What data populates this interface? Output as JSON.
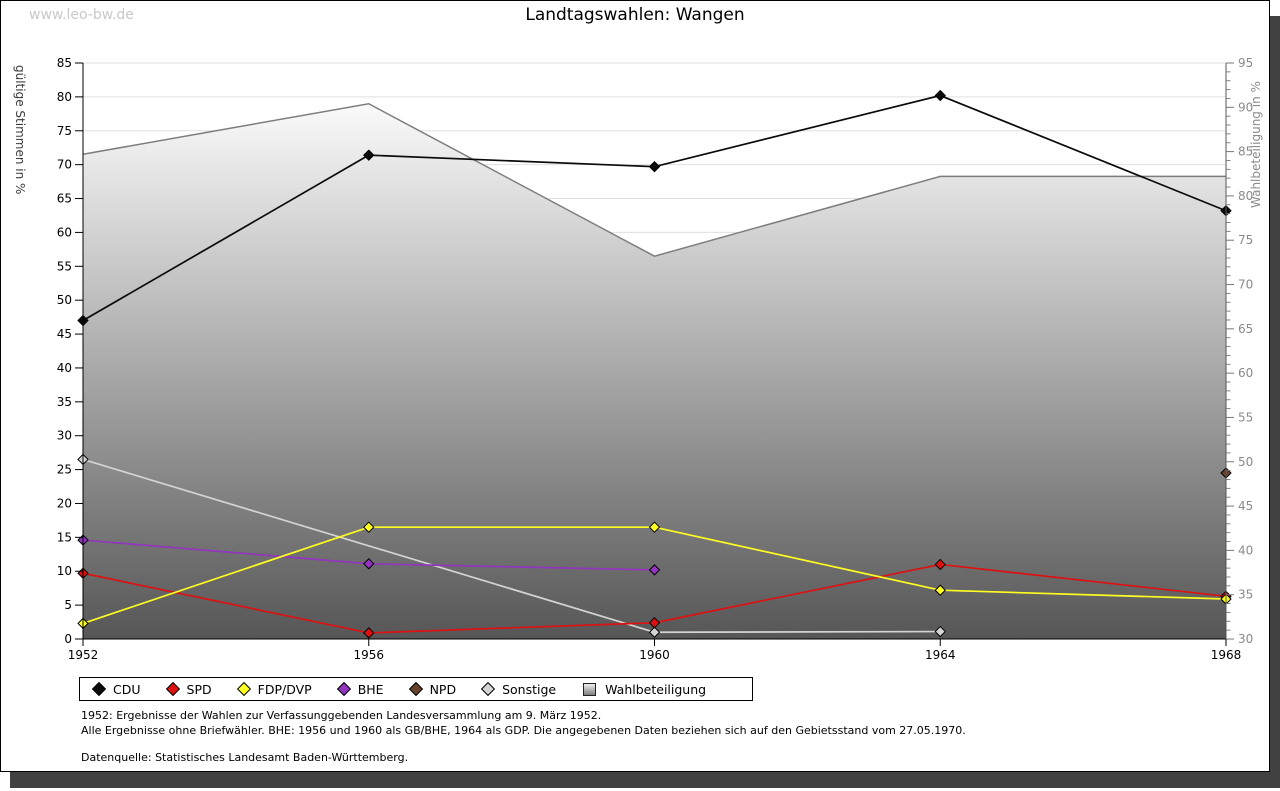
{
  "watermark": "www.leo-bw.de",
  "title": "Landtagswahlen: Wangen",
  "footnotes": {
    "line1": "1952: Ergebnisse der Wahlen zur Verfassunggebenden Landesversammlung am 9. März 1952.",
    "line2": "Alle Ergebnisse ohne Briefwähler. BHE: 1956 und 1960 als GB/BHE, 1964 als GDP. Die angegebenen Daten beziehen sich auf den Gebietsstand vom 27.05.1970.",
    "source": "Datenquelle: Statistisches Landesamt Baden-Württemberg."
  },
  "chart_data": {
    "type": "line",
    "title": "Landtagswahlen: Wangen",
    "x_ticks": [
      1952,
      1956,
      1960,
      1964,
      1968
    ],
    "axes": {
      "x": {
        "min": 1952,
        "max": 1968
      },
      "left": {
        "label": "gültige Stimmen in %",
        "min": 0,
        "max": 85,
        "tick_step": 5
      },
      "right": {
        "label": "Wahlbeteiligung in %",
        "min": 30,
        "max": 95,
        "tick_step": 5,
        "minor_step": 1
      }
    },
    "grid": "horizontal",
    "legend_position": "bottom",
    "series": [
      {
        "name": "CDU",
        "color": "#0a0a0a",
        "axis": "left",
        "style": "line",
        "points": [
          [
            1952,
            47.0
          ],
          [
            1956,
            71.4
          ],
          [
            1960,
            69.7
          ],
          [
            1964,
            80.2
          ],
          [
            1968,
            63.2
          ]
        ]
      },
      {
        "name": "SPD",
        "color": "#dd1111",
        "axis": "left",
        "style": "line",
        "points": [
          [
            1952,
            9.7
          ],
          [
            1956,
            0.9
          ],
          [
            1960,
            2.4
          ],
          [
            1964,
            11.0
          ],
          [
            1968,
            6.3
          ]
        ]
      },
      {
        "name": "FDP/DVP",
        "color": "#ffff22",
        "axis": "left",
        "style": "line",
        "points": [
          [
            1952,
            2.3
          ],
          [
            1956,
            16.5
          ],
          [
            1960,
            16.5
          ],
          [
            1964,
            7.2
          ],
          [
            1968,
            5.9
          ]
        ]
      },
      {
        "name": "BHE",
        "color": "#9136bd",
        "axis": "left",
        "style": "line",
        "points": [
          [
            1952,
            14.6
          ],
          [
            1956,
            11.1
          ],
          [
            1960,
            10.2
          ]
        ]
      },
      {
        "name": "NPD",
        "color": "#69432b",
        "axis": "left",
        "style": "point",
        "points": [
          [
            1968,
            24.5
          ]
        ]
      },
      {
        "name": "Sonstige",
        "color": "#d4d4d4",
        "axis": "left",
        "style": "line",
        "points": [
          [
            1952,
            26.5
          ],
          [
            1960,
            1.0
          ],
          [
            1964,
            1.1
          ]
        ]
      },
      {
        "name": "Wahlbeteiligung",
        "color": "#8d8d8d",
        "axis": "right",
        "style": "area",
        "points": [
          [
            1952,
            84.7
          ],
          [
            1956,
            90.4
          ],
          [
            1960,
            73.2
          ],
          [
            1964,
            82.2
          ],
          [
            1968,
            82.2
          ]
        ]
      }
    ],
    "style": {
      "grid_color": "#e0e0e0",
      "area_gradient_top": "#fbfbfb",
      "area_gradient_bottom": "#565656",
      "area_edge": "#7d7d7d",
      "left_tick_color": "#000000",
      "right_tick_color": "#8a8a8a"
    }
  }
}
